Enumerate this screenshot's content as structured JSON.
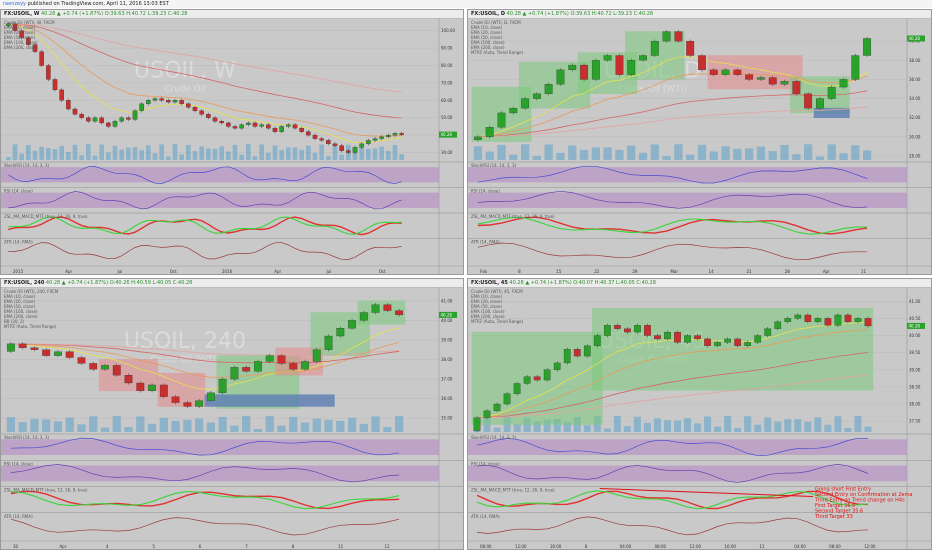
{
  "header": {
    "user": "raenzeyy",
    "published": "published on TradingView.com, April 11, 2016 13:03 EST"
  },
  "colors": {
    "panel_bg": "#c9c9c9",
    "bull": "#2aa12a",
    "bear": "#c92e2e",
    "rsi_band": "#b58cc7",
    "volume": "#5aa0c8",
    "ema_yellow": "#e6e24a",
    "ema_orange": "#e89a5a",
    "ema_red": "#d46565",
    "box_green": "#7cc97c",
    "box_red": "#e58a8a",
    "box_blue": "#5c7fb3"
  },
  "chart_data": [
    {
      "type": "candlestick",
      "id": "weekly",
      "header": "FX:USOIL, W 40.28 ▲ +0.74 (+1.87%) O:39.63 H:40.72 L:39.23 C:40.28",
      "symbol": "FX:USOIL, W",
      "ohlc": "40.28 ▲ +0.74 (+1.87%) O:39.63 H:40.72 L:39.23 C:40.28",
      "watermark": "USOIL, W",
      "watermark_sub": "Crude Oil",
      "legend": [
        "Crude Oil (WTI), W, FXCM",
        "EMA (10, close)",
        "EMA (20, close)",
        "EMA (50, close)",
        "EMA (100, close)",
        "EMA (200, close)"
      ],
      "price_tag": "40.28",
      "y_ticks": [
        "100.00",
        "90.00",
        "80.00",
        "70.00",
        "60.00",
        "50.00",
        "40.00",
        "30.00"
      ],
      "ylim": [
        28,
        105
      ],
      "x_ticks": [
        "2015",
        "Apr",
        "Jul",
        "Oct",
        "2016",
        "Apr",
        "Jul",
        "Oct"
      ],
      "indicators": [
        "StochRSI (14, 14, 3, 3)",
        "RSI (14, close)",
        "ZSL_MA_MACD_MTF (true, 12, 26, 9, true)",
        "ATR (14, RMA)"
      ],
      "closes": [
        104,
        100,
        96,
        92,
        88,
        80,
        72,
        66,
        60,
        55,
        52,
        50,
        48,
        50,
        47,
        45,
        48,
        50,
        49,
        54,
        58,
        60,
        61,
        60,
        59,
        60,
        58,
        56,
        54,
        52,
        50,
        48,
        47,
        45,
        44,
        46,
        47,
        45,
        46,
        44,
        42,
        45,
        46,
        44,
        42,
        40,
        38,
        37,
        35,
        34,
        31,
        30,
        33,
        35,
        37,
        38,
        39,
        40,
        41,
        40.28
      ],
      "boxes": []
    },
    {
      "type": "candlestick",
      "id": "daily",
      "header": "FX:USOIL, D 40.28 ▲ +0.74 (+1.87%) O:39.63 H:40.72 L:39.23 C:40.28",
      "symbol": "FX:USOIL, D",
      "ohlc": "40.28 ▲ +0.74 (+1.87%) O:39.63 H:40.72 L:39.23 C:40.28",
      "watermark": "USOIL, D",
      "watermark_sub": "Crude Oil (WTI)",
      "legend": [
        "Crude Oil (WTI), D, FXCM",
        "EMA (10, close)",
        "EMA (20, close)",
        "EMA (50, close)",
        "EMA (100, close)",
        "EMA (200, close)",
        "MTPZ (Auto, Trend Range)"
      ],
      "price_tag": "40.28",
      "y_ticks": [
        "40.00",
        "38.00",
        "36.00",
        "34.00",
        "32.00",
        "30.00",
        "28.00"
      ],
      "ylim": [
        28,
        42
      ],
      "x_ticks": [
        "Feb",
        "8",
        "15",
        "22",
        "29",
        "Mar",
        "14",
        "21",
        "28",
        "Apr",
        "11"
      ],
      "indicators": [
        "StochRSI (14, 14, 3, 3)",
        "RSI (14, close)",
        "ZSL_MA_MACD_MTF (true, 12, 26, 9, true)",
        "ATR (14, RMA)"
      ],
      "closes": [
        30,
        31,
        32.5,
        33,
        34,
        34.5,
        35.5,
        37,
        37.5,
        36,
        38,
        38.5,
        36.5,
        38,
        38.5,
        40,
        41,
        40,
        38.5,
        37,
        36.5,
        37,
        36.5,
        36,
        36.2,
        35.5,
        35.8,
        34.5,
        33,
        34,
        35.2,
        36,
        38.5,
        40.28
      ],
      "boxes": [
        {
          "kind": "green",
          "from": 0,
          "to": 4,
          "low": 29.5,
          "high": 35.2
        },
        {
          "kind": "green",
          "from": 4,
          "to": 9,
          "low": 33,
          "high": 37.8
        },
        {
          "kind": "green",
          "from": 9,
          "to": 13,
          "low": 34.5,
          "high": 38.8
        },
        {
          "kind": "green",
          "from": 13,
          "to": 17,
          "low": 36,
          "high": 41
        },
        {
          "kind": "red",
          "from": 20,
          "to": 27,
          "low": 35,
          "high": 38.5
        },
        {
          "kind": "green",
          "from": 27,
          "to": 31,
          "low": 32.5,
          "high": 36.3
        },
        {
          "kind": "blue",
          "from": 29,
          "to": 31,
          "low": 32,
          "high": 33
        }
      ]
    },
    {
      "type": "candlestick",
      "id": "h4",
      "header": "FX:USOIL, 240 40.28 ▲ +0.74 (+1.87%) O:40.26 H:40.59 L:40.05 C:40.28",
      "symbol": "FX:USOIL, 240",
      "ohlc": "40.28 ▲ +0.74 (+1.87%) O:40.26 H:40.59 L:40.05 C:40.28",
      "watermark": "USOIL, 240",
      "watermark_sub": "Crude Oil (WTI)",
      "legend": [
        "Crude Oil (WTI), 240, FXCM",
        "EMA (10, close)",
        "EMA (20, close)",
        "EMA (50, close)",
        "EMA (100, close)",
        "EMA (200, close)",
        "BB (20, 2)",
        "MTPZ (Auto, Trend Range)"
      ],
      "price_tag": "40.28",
      "y_ticks": [
        "41.00",
        "40.00",
        "39.00",
        "38.00",
        "37.00",
        "36.00",
        "35.00"
      ],
      "ylim": [
        34.5,
        41.5
      ],
      "x_ticks": [
        "30",
        "Apr",
        "4",
        "5",
        "6",
        "7",
        "8",
        "11",
        "12"
      ],
      "indicators": [
        "StochRSI (14, 14, 3, 3)",
        "RSI (14, close)",
        "ZSL_MA_MACD_MTF (true, 12, 26, 9, true)",
        "ATR (14, RMA)"
      ],
      "closes": [
        38.8,
        38.6,
        38.5,
        38.2,
        38.4,
        38.1,
        37.8,
        37.5,
        37.7,
        37.2,
        36.8,
        36.4,
        36.7,
        36.1,
        35.8,
        35.6,
        35.9,
        36.3,
        37,
        37.6,
        37.4,
        37.9,
        38.2,
        37.8,
        37.5,
        37.9,
        38.5,
        39.2,
        39.6,
        40,
        40.4,
        40.8,
        40.5,
        40.28
      ],
      "boxes": [
        {
          "kind": "red",
          "from": 8,
          "to": 12,
          "low": 36.4,
          "high": 38
        },
        {
          "kind": "red",
          "from": 13,
          "to": 16,
          "low": 35.6,
          "high": 37.3
        },
        {
          "kind": "green",
          "from": 18,
          "to": 24,
          "low": 35.5,
          "high": 38.2
        },
        {
          "kind": "red",
          "from": 23,
          "to": 26,
          "low": 37.2,
          "high": 38.6
        },
        {
          "kind": "blue",
          "from": 17,
          "to": 27,
          "low": 35.6,
          "high": 36.2
        },
        {
          "kind": "green",
          "from": 26,
          "to": 30,
          "low": 38.2,
          "high": 40.4
        },
        {
          "kind": "green",
          "from": 30,
          "to": 33,
          "low": 39.8,
          "high": 41
        }
      ]
    },
    {
      "type": "candlestick",
      "id": "m45",
      "header": "FX:USOIL, 45 40.28 ▲ +0.74 (+1.87%) O:40.07 H:40.37 L:40.05 C:40.28",
      "symbol": "FX:USOIL, 45",
      "ohlc": "40.28 ▲ +0.74 (+1.87%) O:40.07 H:40.37 L:40.05 C:40.28",
      "watermark": "USOIL, 45",
      "watermark_sub": "Crude Oil (WTI)",
      "legend": [
        "Crude Oil (WTI), 45, FXCM",
        "EMA (10, close)",
        "EMA (20, close)",
        "EMA (50, close)",
        "EMA (100, close)",
        "EMA (200, close)",
        "MTPZ (Auto, Trend Range)"
      ],
      "price_tag": "40.28",
      "y_ticks": [
        "41.00",
        "40.50",
        "40.00",
        "39.50",
        "39.00",
        "38.50",
        "38.00",
        "37.50"
      ],
      "ylim": [
        37.3,
        41.3
      ],
      "x_ticks": [
        "08:00",
        "12:00",
        "16:00",
        "8",
        "04:00",
        "08:00",
        "12:00",
        "16:00",
        "11",
        "04:00",
        "08:00",
        "12:00"
      ],
      "indicators": [
        "StochRSI (14, 14, 3, 3)",
        "RSI (14, close)",
        "ZSL_MA_MACD_MTF (true, 12, 26, 9, true)",
        "ATR (14, RMA)"
      ],
      "closes": [
        37.6,
        37.8,
        38,
        38.3,
        38.6,
        38.8,
        38.7,
        39,
        39.2,
        39.6,
        39.4,
        39.7,
        40,
        40.3,
        40.2,
        40.1,
        40.3,
        40,
        39.9,
        40.1,
        39.8,
        40,
        39.9,
        39.7,
        39.8,
        39.9,
        39.7,
        39.8,
        40,
        40.2,
        40.4,
        40.5,
        40.6,
        40.4,
        40.5,
        40.3,
        40.6,
        40.4,
        40.5,
        40.28
      ],
      "boxes": [
        {
          "kind": "green",
          "from": 0,
          "to": 12,
          "low": 37.4,
          "high": 40.1
        },
        {
          "kind": "green",
          "from": 12,
          "to": 39,
          "low": 38.4,
          "high": 40.8
        }
      ],
      "annotations": [
        "Going short First Entry",
        "Second Entry on Confirmation at 2ema",
        "Third Entry on Trend change on H4s",
        "First Target 36.6",
        "Second Target 35.6",
        "Third Target 33"
      ]
    }
  ]
}
